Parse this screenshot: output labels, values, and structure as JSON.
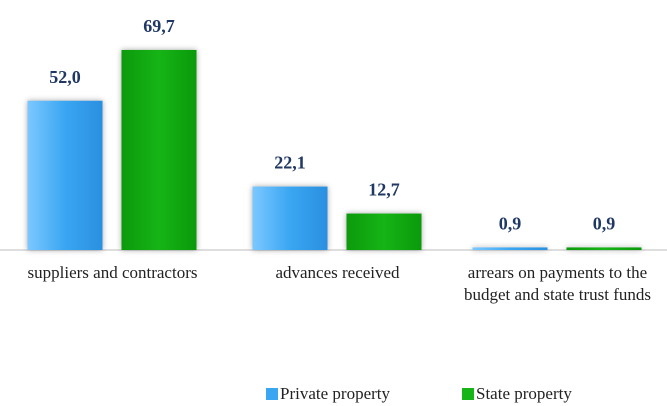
{
  "chart_data": {
    "type": "bar",
    "categories": [
      "suppliers and contractors",
      "advances received",
      "arrears on payments to the budget and state trust funds"
    ],
    "series": [
      {
        "name": "Private property",
        "color": "#3aa6f2",
        "values": [
          52.0,
          22.1,
          0.9
        ],
        "value_labels": [
          "52,0",
          "22,1",
          "0,9"
        ]
      },
      {
        "name": "State property",
        "color": "#16b416",
        "values": [
          69.7,
          12.7,
          0.9
        ],
        "value_labels": [
          "69,7",
          "12,7",
          "0,9"
        ]
      }
    ],
    "legend": "bottom"
  }
}
